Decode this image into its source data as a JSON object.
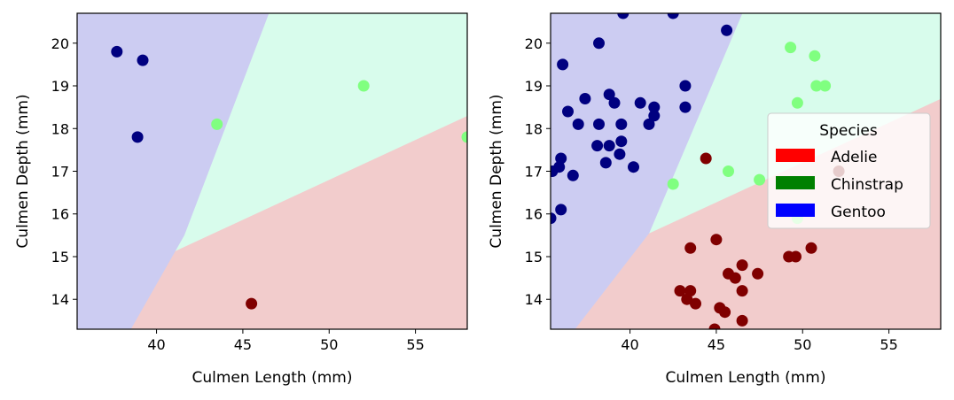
{
  "colors": {
    "adelie_region": "#f2cccc",
    "chinstrap_region": "#d8fcec",
    "gentoo_region": "#ccccf2",
    "adelie_point": "#800000",
    "chinstrap_point": "#80ff80",
    "gentoo_point": "#000080",
    "legend_adelie": "#ff0000",
    "legend_chinstrap": "#008000",
    "legend_gentoo": "#0000ff"
  },
  "chart_data": [
    {
      "type": "scatter",
      "title": "",
      "xlabel": "Culmen Length (mm)",
      "ylabel": "Culmen Depth (mm)",
      "xlim": [
        35.4,
        58
      ],
      "ylim": [
        13.3,
        20.7
      ],
      "xticks": [
        40,
        45,
        50,
        55
      ],
      "yticks": [
        14,
        15,
        16,
        17,
        18,
        19,
        20
      ],
      "regions": {
        "gentoo": [
          [
            35.4,
            20.7
          ],
          [
            46.5,
            20.7
          ],
          [
            41.6,
            15.5
          ],
          [
            38.5,
            13.3
          ],
          [
            35.4,
            13.3
          ]
        ],
        "chinstrap": [
          [
            46.5,
            20.7
          ],
          [
            58,
            20.7
          ],
          [
            58,
            18.3
          ],
          [
            40.1,
            14.95
          ]
        ],
        "adelie": [
          [
            40.1,
            14.95
          ],
          [
            58,
            18.3
          ],
          [
            58,
            13.3
          ],
          [
            36.8,
            13.3
          ]
        ]
      },
      "series": [
        {
          "class": "gentoo",
          "points": [
            [
              37.7,
              19.8
            ],
            [
              39.2,
              19.6
            ],
            [
              38.9,
              17.8
            ]
          ]
        },
        {
          "class": "chinstrap",
          "points": [
            [
              43.5,
              18.1
            ],
            [
              52.0,
              19.0
            ],
            [
              58.0,
              17.8
            ]
          ]
        },
        {
          "class": "adelie",
          "points": [
            [
              45.5,
              13.9
            ]
          ]
        }
      ]
    },
    {
      "type": "scatter",
      "title": "",
      "xlabel": "Culmen Length (mm)",
      "ylabel": "Culmen Depth (mm)",
      "xlim": [
        35.4,
        58
      ],
      "ylim": [
        13.3,
        20.7
      ],
      "xticks": [
        40,
        45,
        50,
        55
      ],
      "yticks": [
        14,
        15,
        16,
        17,
        18,
        19,
        20
      ],
      "regions": {
        "gentoo": [
          [
            35.4,
            20.7
          ],
          [
            46.5,
            20.7
          ],
          [
            41.1,
            15.55
          ],
          [
            36.8,
            13.3
          ],
          [
            35.4,
            13.3
          ]
        ],
        "chinstrap": [
          [
            46.5,
            20.7
          ],
          [
            58,
            20.7
          ],
          [
            58,
            18.7
          ],
          [
            41.1,
            15.55
          ]
        ],
        "adelie": [
          [
            41.1,
            15.55
          ],
          [
            58,
            18.7
          ],
          [
            58,
            13.3
          ],
          [
            36.8,
            13.3
          ]
        ]
      },
      "series": [
        {
          "class": "gentoo",
          "points": [
            [
              39.6,
              20.7
            ],
            [
              42.5,
              20.7
            ],
            [
              45.6,
              20.3
            ],
            [
              38.2,
              20.0
            ],
            [
              36.1,
              19.5
            ],
            [
              37.4,
              18.7
            ],
            [
              38.8,
              18.8
            ],
            [
              39.1,
              18.6
            ],
            [
              40.6,
              18.6
            ],
            [
              41.4,
              18.5
            ],
            [
              43.2,
              19.0
            ],
            [
              43.2,
              18.5
            ],
            [
              36.4,
              18.4
            ],
            [
              41.4,
              18.3
            ],
            [
              37.0,
              18.1
            ],
            [
              38.2,
              18.1
            ],
            [
              39.5,
              18.1
            ],
            [
              41.1,
              18.1
            ],
            [
              38.1,
              17.6
            ],
            [
              38.8,
              17.6
            ],
            [
              39.5,
              17.7
            ],
            [
              39.4,
              17.4
            ],
            [
              36.0,
              17.3
            ],
            [
              38.6,
              17.2
            ],
            [
              40.2,
              17.1
            ],
            [
              35.5,
              17.0
            ],
            [
              35.9,
              17.1
            ],
            [
              36.7,
              16.9
            ],
            [
              36.0,
              16.1
            ],
            [
              35.4,
              15.9
            ]
          ]
        },
        {
          "class": "chinstrap",
          "points": [
            [
              49.3,
              19.9
            ],
            [
              50.7,
              19.7
            ],
            [
              50.8,
              19.0
            ],
            [
              51.3,
              19.0
            ],
            [
              49.7,
              18.6
            ],
            [
              45.7,
              17.0
            ],
            [
              47.5,
              16.8
            ],
            [
              42.5,
              16.7
            ],
            [
              49.7,
              15.9
            ]
          ]
        },
        {
          "class": "adelie",
          "points": [
            [
              44.4,
              17.3
            ],
            [
              52.1,
              17.0
            ],
            [
              43.5,
              15.2
            ],
            [
              45.0,
              15.4
            ],
            [
              49.2,
              15.0
            ],
            [
              49.6,
              15.0
            ],
            [
              50.5,
              15.2
            ],
            [
              46.5,
              14.8
            ],
            [
              45.7,
              14.6
            ],
            [
              47.4,
              14.6
            ],
            [
              46.1,
              14.5
            ],
            [
              42.9,
              14.2
            ],
            [
              43.5,
              14.2
            ],
            [
              46.5,
              14.2
            ],
            [
              43.3,
              14.0
            ],
            [
              43.8,
              13.9
            ],
            [
              45.2,
              13.8
            ],
            [
              45.5,
              13.7
            ],
            [
              46.5,
              13.5
            ],
            [
              44.9,
              13.3
            ]
          ]
        }
      ]
    }
  ],
  "legend": {
    "title": "Species",
    "entries": [
      {
        "label": "Adelie",
        "color": "#ff0000"
      },
      {
        "label": "Chinstrap",
        "color": "#008000"
      },
      {
        "label": "Gentoo",
        "color": "#0000ff"
      }
    ]
  }
}
